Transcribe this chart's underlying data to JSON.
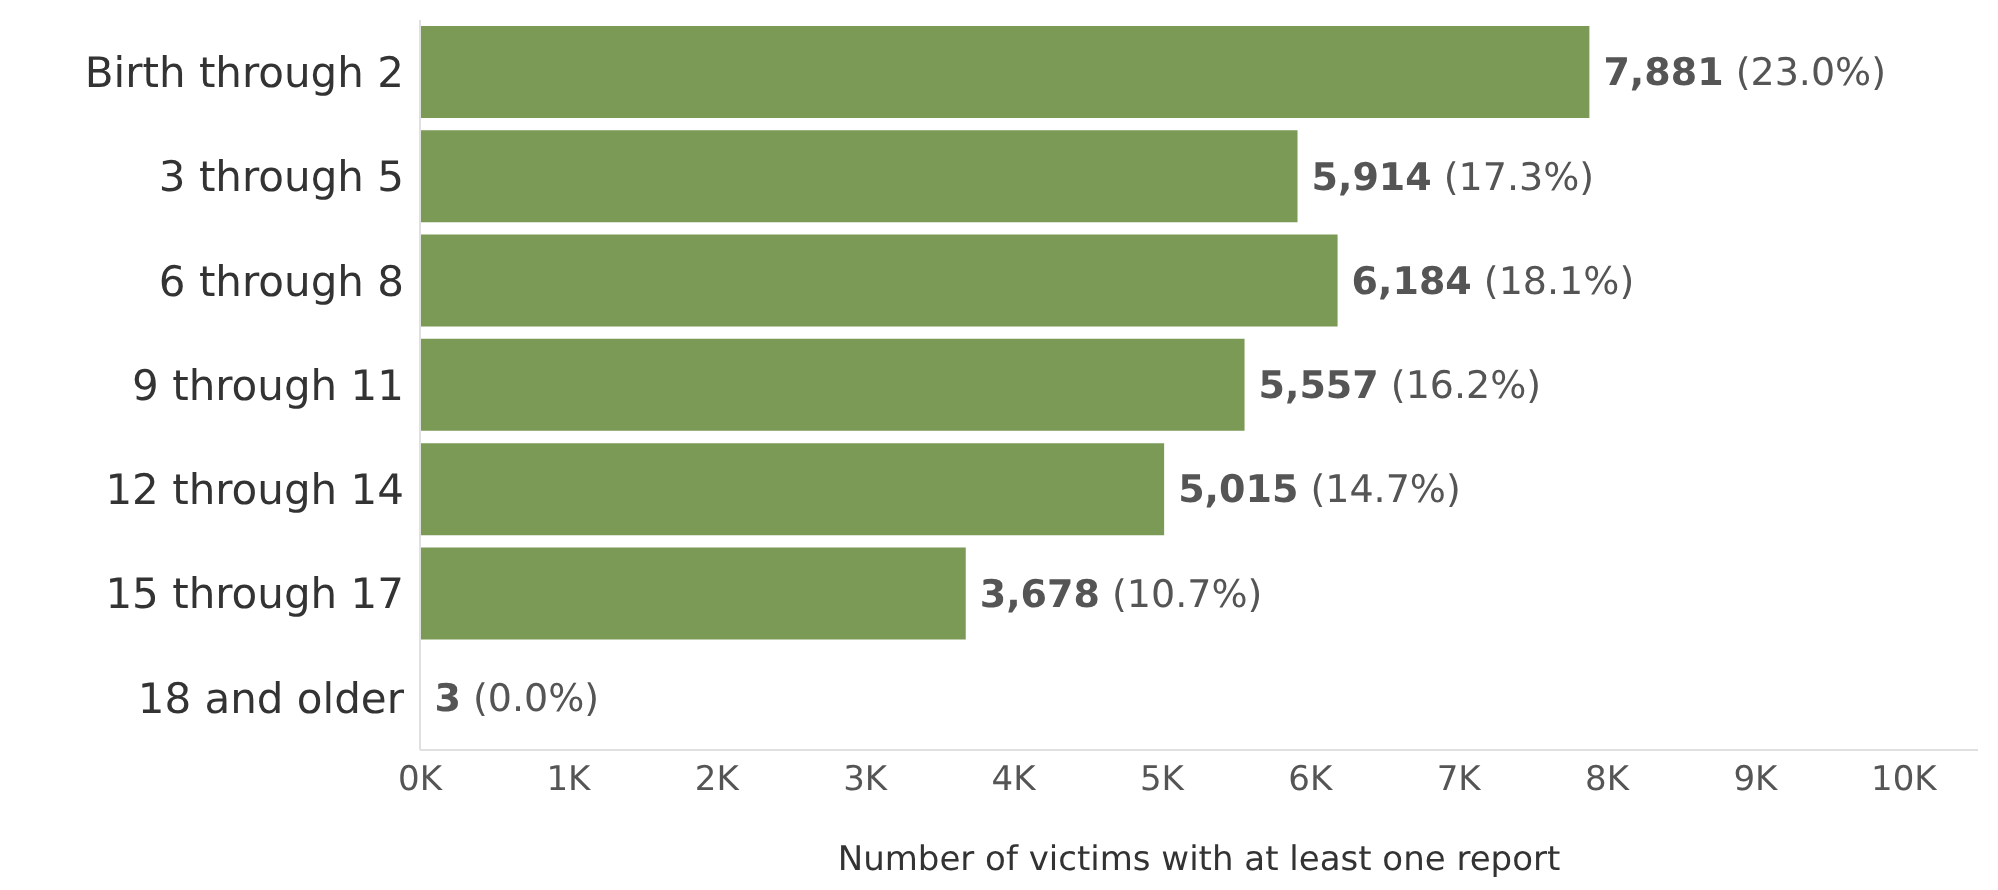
{
  "chart_data": {
    "type": "bar",
    "orientation": "horizontal",
    "xlabel": "Number of victims with at least one report",
    "categories": [
      "Birth through 2",
      "3 through 5",
      "6 through 8",
      "9 through 11",
      "12 through 14",
      "15 through 17",
      "18 and older"
    ],
    "values": [
      7881,
      5914,
      6184,
      5557,
      5015,
      3678,
      3
    ],
    "value_labels": [
      "7,881 (23.0%)",
      "5,914 (17.3%)",
      "6,184 (18.1%)",
      "5,557 (16.2%)",
      "5,015 (14.7%)",
      "3,678 (10.7%)",
      "3 (0.0%)"
    ],
    "color": "#7a9a55",
    "xlim": [
      0,
      10500
    ],
    "xticks": [
      {
        "value": 0,
        "label": "0K"
      },
      {
        "value": 1000,
        "label": "1K"
      },
      {
        "value": 2000,
        "label": "2K"
      },
      {
        "value": 3000,
        "label": "3K"
      },
      {
        "value": 4000,
        "label": "4K"
      },
      {
        "value": 5000,
        "label": "5K"
      },
      {
        "value": 6000,
        "label": "6K"
      },
      {
        "value": 7000,
        "label": "7K"
      },
      {
        "value": 8000,
        "label": "8K"
      },
      {
        "value": 9000,
        "label": "9K"
      },
      {
        "value": 10000,
        "label": "10K"
      }
    ],
    "grid": false,
    "legend": false
  }
}
